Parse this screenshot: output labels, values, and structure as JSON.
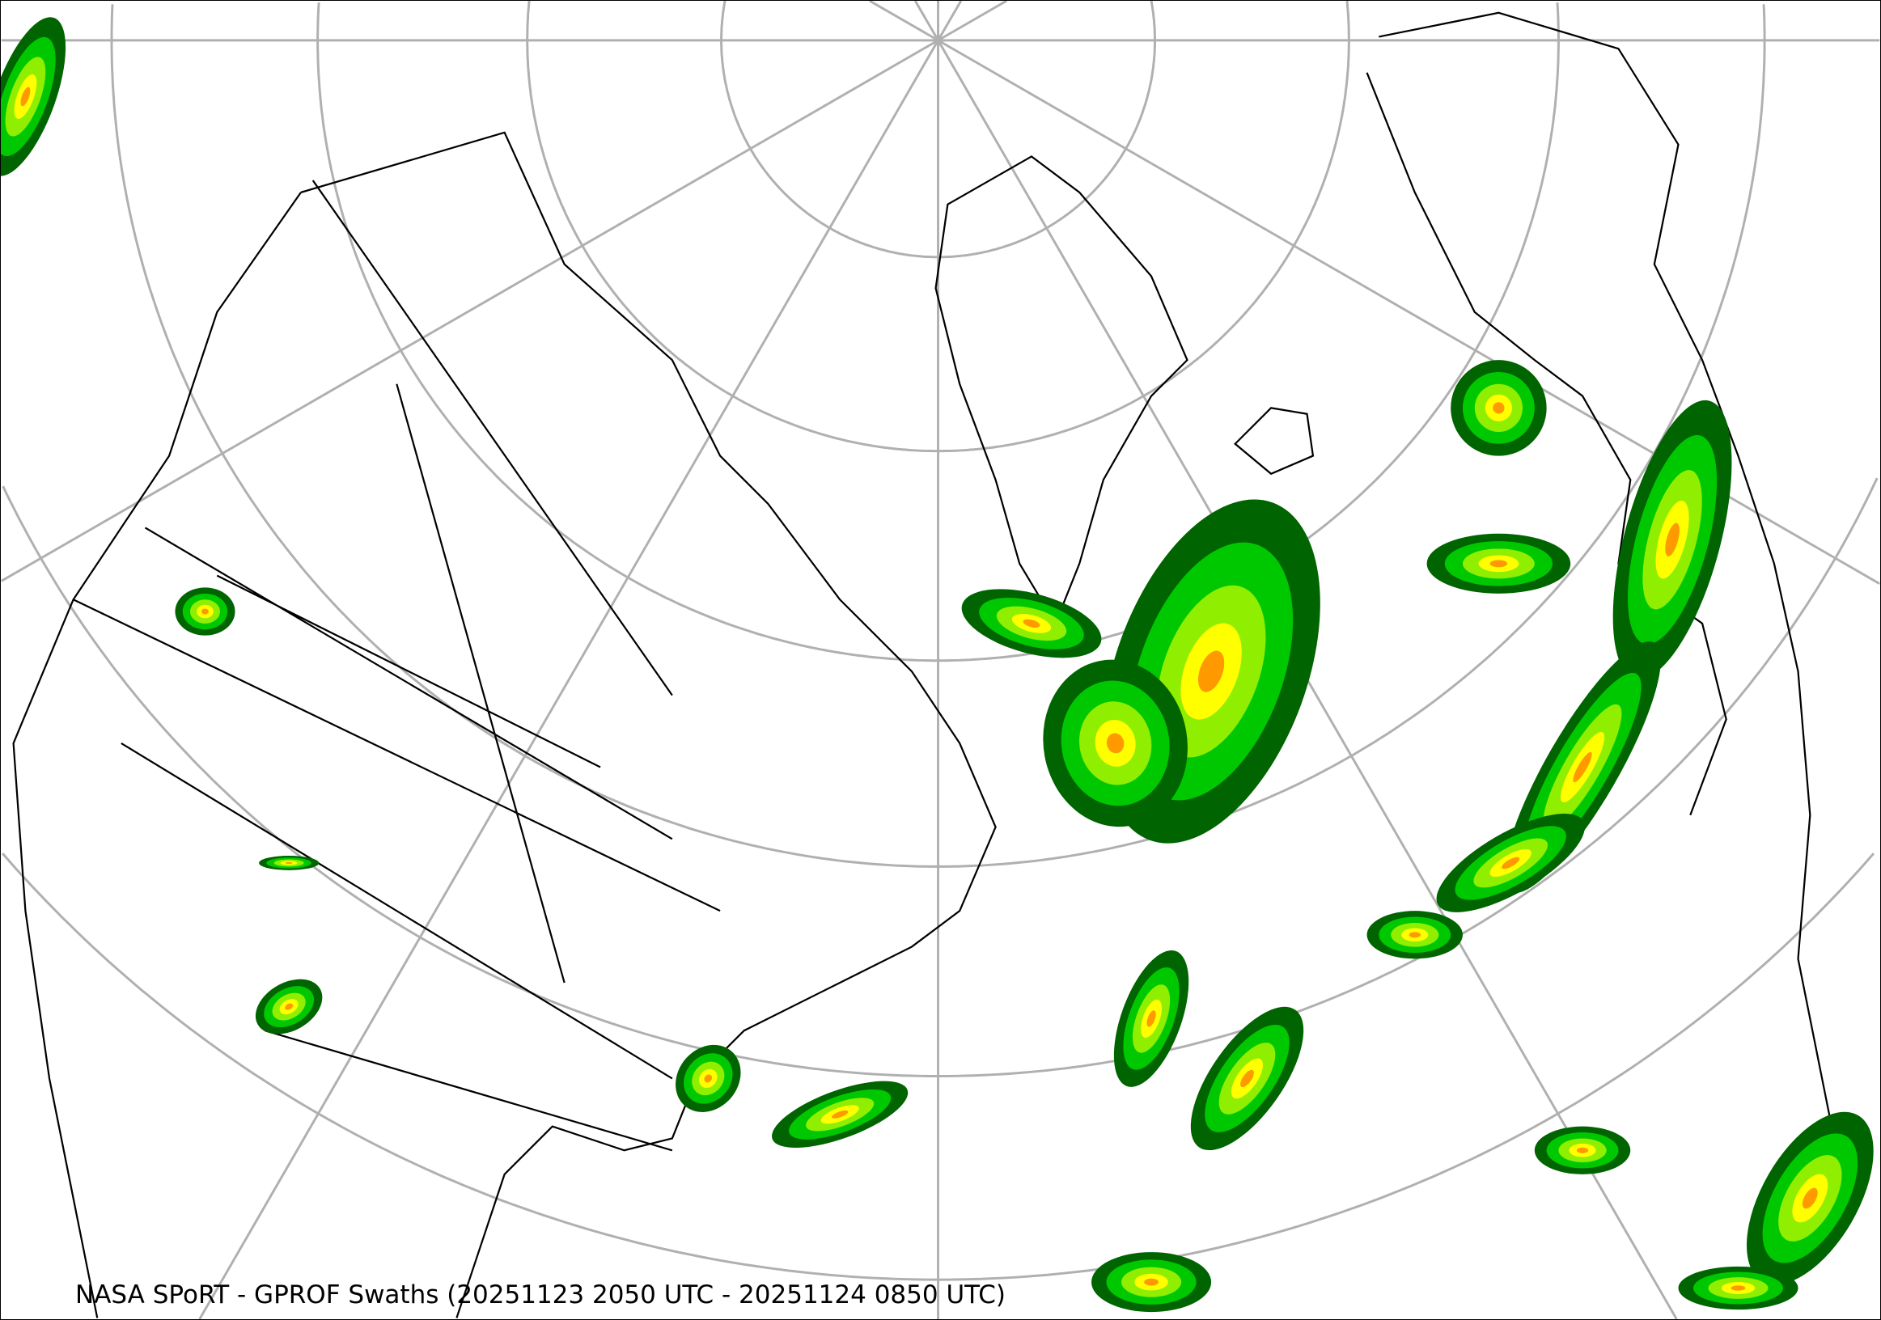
{
  "caption": "NASA SPoRT - GPROF Swaths (20251123 2050 UTC - 20251124 0850 UTC)",
  "map": {
    "projection": "north-polar stereographic",
    "graticule_color": "#b0b0b0",
    "coastline_color": "#000000",
    "precip_colors": [
      "#006400",
      "#00c800",
      "#90ee00",
      "#ffff00",
      "#ff9900",
      "#ff3300"
    ]
  }
}
